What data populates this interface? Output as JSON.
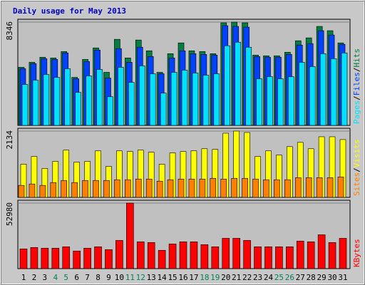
{
  "chart_data": {
    "type": "bar",
    "title": "Daily usage for May 2013",
    "categories": [
      "1",
      "2",
      "3",
      "4",
      "5",
      "6",
      "7",
      "8",
      "9",
      "10",
      "11",
      "12",
      "13",
      "14",
      "15",
      "16",
      "17",
      "18",
      "19",
      "20",
      "21",
      "22",
      "23",
      "24",
      "25",
      "26",
      "27",
      "28",
      "29",
      "30",
      "31"
    ],
    "category_colors": [
      "#000000",
      "#000000",
      "#000000",
      "#00805c",
      "#00805c",
      "#000000",
      "#000000",
      "#000000",
      "#000000",
      "#000000",
      "#00805c",
      "#00805c",
      "#000000",
      "#000000",
      "#000000",
      "#000000",
      "#000000",
      "#00805c",
      "#00805c",
      "#000000",
      "#000000",
      "#000000",
      "#000000",
      "#000000",
      "#00805c",
      "#00805c",
      "#000000",
      "#000000",
      "#000000",
      "#000000",
      "#000000"
    ],
    "label_separator": "/",
    "grid": true,
    "panels": [
      {
        "ylim": [
          0,
          8346
        ],
        "yticks": [
          8346
        ],
        "series": [
          {
            "name": "Hits",
            "color": "#008040",
            "values": [
              4695,
              5100,
              5506,
              5448,
              5970,
              3883,
              5332,
              6260,
              4289,
              6955,
              5448,
              6897,
              6028,
              4289,
              5796,
              6665,
              6028,
              5970,
              5796,
              8288,
              8346,
              8288,
              5680,
              5622,
              5622,
              5912,
              6839,
              7071,
              7998,
              7651,
              6665
            ]
          },
          {
            "name": "Files",
            "color": "#0040ff",
            "values": [
              4579,
              4985,
              5390,
              5332,
              5854,
              3767,
              5158,
              6086,
              3825,
              6202,
              5100,
              6318,
              5564,
              4173,
              5448,
              6028,
              5796,
              5738,
              5680,
              8056,
              7998,
              7941,
              5564,
              5506,
              5506,
              5738,
              6492,
              6607,
              7651,
              7303,
              6549
            ]
          },
          {
            "name": "Pages",
            "color": "#00e0ff",
            "values": [
              3304,
              3651,
              4115,
              3883,
              4579,
              2666,
              3999,
              4521,
              2318,
              4695,
              3478,
              4811,
              4173,
              2608,
              4289,
              4463,
              4231,
              4057,
              4173,
              6434,
              6723,
              6318,
              3767,
              3941,
              3767,
              3941,
              5100,
              4753,
              5796,
              5390,
              5854
            ]
          }
        ]
      },
      {
        "ylim": [
          0,
          2134
        ],
        "yticks": [
          2134
        ],
        "series": [
          {
            "name": "Visits",
            "color": "#ffff00",
            "values": [
              1067,
              1317,
              931,
              1158,
              1521,
              1135,
              1158,
              1498,
              999,
              1498,
              1476,
              1521,
              1453,
              1067,
              1430,
              1476,
              1498,
              1566,
              1544,
              2066,
              2134,
              2088,
              1317,
              1498,
              1362,
              1634,
              1771,
              1566,
              1952,
              1952,
              1861
            ]
          },
          {
            "name": "Sites",
            "color": "#ff8000",
            "values": [
              386,
              431,
              386,
              477,
              545,
              477,
              545,
              545,
              545,
              568,
              568,
              590,
              590,
              522,
              568,
              590,
              590,
              590,
              613,
              590,
              613,
              613,
              590,
              568,
              568,
              568,
              636,
              636,
              636,
              636,
              658
            ]
          }
        ]
      },
      {
        "ylim": [
          0,
          52980
        ],
        "yticks": [
          52980
        ],
        "series": [
          {
            "name": "KBytes",
            "color": "#ff0000",
            "values": [
              15952,
              17091,
              16521,
              16521,
              17661,
              14243,
              16521,
              17661,
              15382,
              22788,
              52980,
              21649,
              21079,
              14812,
              19940,
              21649,
              21649,
              19370,
              17661,
              24497,
              24497,
              22788,
              17661,
              17661,
              17661,
              17661,
              22218,
              21649,
              27346,
              21079,
              24497
            ]
          }
        ]
      }
    ]
  }
}
